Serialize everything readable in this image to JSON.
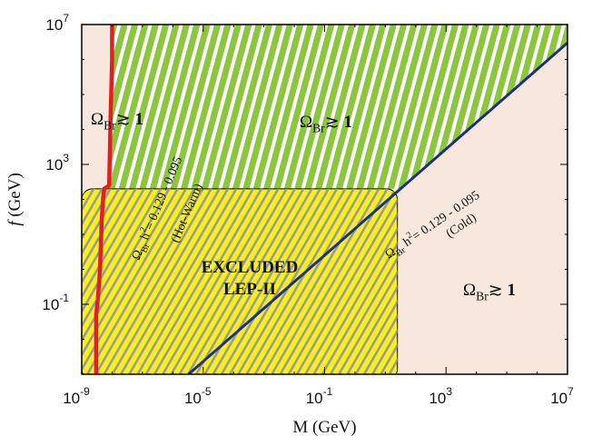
{
  "chart_data": {
    "type": "area",
    "title": "",
    "xlabel": "M (GeV)",
    "ylabel_italic": "f",
    "ylabel_rest": " (GeV)",
    "x_scale": "log",
    "y_scale": "log",
    "xlim": [
      1e-09,
      10000000.0
    ],
    "ylim": [
      0.001,
      10000000.0
    ],
    "x_ticks": [
      {
        "base": "10",
        "exp": "-9",
        "value": 1e-09
      },
      {
        "base": "10",
        "exp": "-5",
        "value": 1e-05
      },
      {
        "base": "10",
        "exp": "-1",
        "value": 0.1
      },
      {
        "base": "10",
        "exp": "3",
        "value": 1000
      },
      {
        "base": "10",
        "exp": "7",
        "value": 10000000.0
      }
    ],
    "y_ticks": [
      {
        "base": "10",
        "exp": "-1",
        "value": 0.1
      },
      {
        "base": "10",
        "exp": "3",
        "value": 1000
      },
      {
        "base": "10",
        "exp": "7",
        "value": 10000000.0
      }
    ],
    "regions": [
      {
        "name": "omega-br-overclosure-left",
        "color": "#f7e7dc",
        "polygon": [
          [
            1e-09,
            10000000.0
          ],
          [
            1e-08,
            10000000.0
          ],
          [
            6e-09,
            200
          ],
          [
            6e-09,
            0.001
          ],
          [
            1e-09,
            0.001
          ]
        ]
      },
      {
        "name": "green-hatched-region",
        "color": "#8cc63e",
        "hatch": "#ffffff"
      },
      {
        "name": "excluded-lep-ii",
        "color": "#f8ef1b",
        "hatch": "#9a9a9a",
        "xrange": [
          1e-09,
          25
        ],
        "yrange": [
          0.001,
          200
        ]
      },
      {
        "name": "omega-br-overclosure-right",
        "color": "#f7e7dc"
      }
    ],
    "series": [
      {
        "color": "#e02020",
        "x": [
          1e-08,
          1e-08,
          9e-09,
          8e-09,
          5.5e-09,
          5e-09,
          4.5e-09,
          4e-09,
          3.5e-09,
          3e-09,
          3e-09
        ],
        "y": [
          10000000.0,
          1000000.0,
          30000.0,
          250,
          200,
          100,
          20,
          1,
          0.2,
          0.05,
          0.001
        ]
      },
      {
        "color": "#1c2f85",
        "x": [
          3.3e-06,
          10000000.0
        ],
        "y": [
          0.001,
          3000000.0
        ]
      }
    ],
    "annotations": [
      {
        "kind": "omega",
        "sym": "Ω",
        "sub": "Br",
        "rel": "≳",
        "num": "1"
      },
      {
        "kind": "omega",
        "sym": "Ω",
        "sub": "Br",
        "rel": "≳",
        "num": "1"
      },
      {
        "kind": "omega",
        "sym": "Ω",
        "sub": "Br",
        "rel": "≳",
        "num": "1"
      },
      {
        "kind": "relic",
        "sym": "Ω",
        "sub": "Br",
        "h": "h",
        "sup": "2",
        "range": "= 0.129 - 0.095"
      },
      {
        "kind": "text",
        "text": "(Hot-Warm)"
      },
      {
        "kind": "relic",
        "sym": "Ω",
        "sub": "Br",
        "h": "h",
        "sup": "2",
        "range": "= 0.129 - 0.095"
      },
      {
        "kind": "text",
        "text": "(Cold)"
      }
    ],
    "excluded_label": [
      "EXCLUDED",
      "LEP-II"
    ],
    "grid": false
  }
}
